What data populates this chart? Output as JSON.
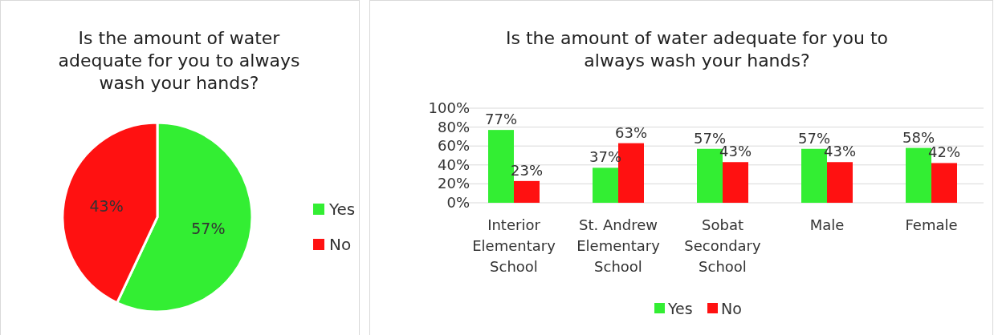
{
  "chart_data": [
    {
      "type": "pie",
      "title": "Is the amount of water adequate for you to always wash your hands?",
      "categories": [
        "Yes",
        "No"
      ],
      "values": [
        57,
        43
      ],
      "colors": [
        "#33ee33",
        "#ff1111"
      ],
      "value_labels": [
        "57%",
        "43%"
      ],
      "legend": "right"
    },
    {
      "type": "bar",
      "title": "Is the amount of water adequate for you to always wash your hands?",
      "categories": [
        "Interior Elementary School",
        "St. Andrew Elementary School",
        "Sobat Secondary School",
        "Male",
        "Female"
      ],
      "series": [
        {
          "name": "Yes",
          "color": "#33ee33",
          "values": [
            77,
            37,
            57,
            57,
            58
          ],
          "value_labels": [
            "77%",
            "37%",
            "57%",
            "57%",
            "58%"
          ]
        },
        {
          "name": "No",
          "color": "#ff1111",
          "values": [
            23,
            63,
            43,
            43,
            42
          ],
          "value_labels": [
            "23%",
            "63%",
            "43%",
            "43%",
            "42%"
          ]
        }
      ],
      "ylim": [
        0,
        100
      ],
      "yticks": [
        {
          "value": 0,
          "label": "0%"
        },
        {
          "value": 20,
          "label": "20%"
        },
        {
          "value": 40,
          "label": "40%"
        },
        {
          "value": 60,
          "label": "60%"
        },
        {
          "value": 80,
          "label": "80%"
        },
        {
          "value": 100,
          "label": "100%"
        }
      ],
      "grid": "y",
      "legend": "bottom"
    }
  ]
}
